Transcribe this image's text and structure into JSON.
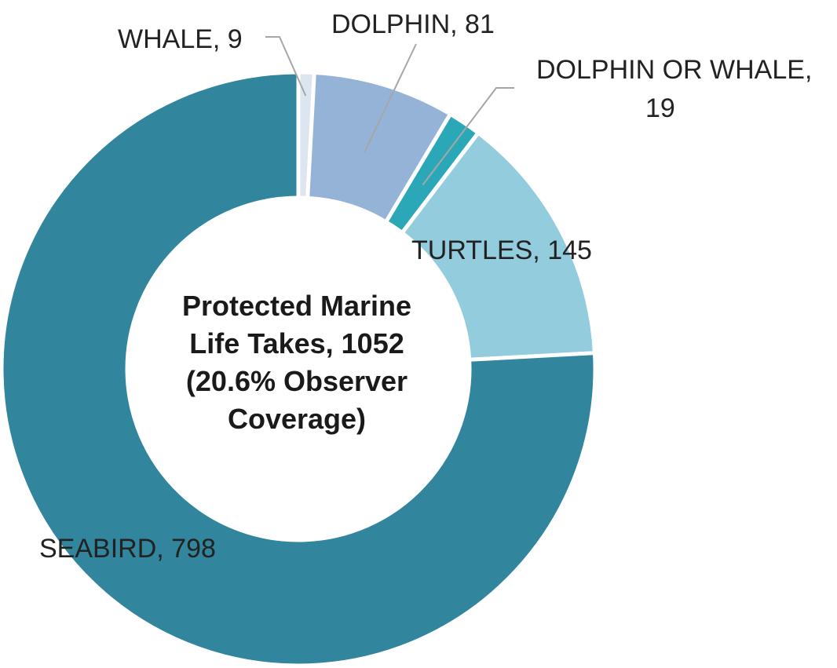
{
  "chart_data": {
    "type": "pie",
    "donut": true,
    "center_label": [
      "Protected Marine",
      "Life Takes, 1052",
      "(20.6% Observer",
      "Coverage)"
    ],
    "total": 1052,
    "slices": [
      {
        "category": "WHALE",
        "value": 9,
        "label": "WHALE, 9",
        "color": "#dde6f0"
      },
      {
        "category": "DOLPHIN",
        "value": 81,
        "label": "DOLPHIN, 81",
        "color": "#95b3d7"
      },
      {
        "category": "DOLPHIN OR WHALE",
        "value": 19,
        "label_lines": [
          "DOLPHIN OR WHALE,",
          "19"
        ],
        "color": "#2ba8b8"
      },
      {
        "category": "TURTLES",
        "value": 145,
        "label": "TURTLES, 145",
        "color": "#93cddd"
      },
      {
        "category": "SEABIRD",
        "value": 798,
        "label": "SEABIRD, 798",
        "color": "#31859c"
      }
    ],
    "legend": "none"
  }
}
